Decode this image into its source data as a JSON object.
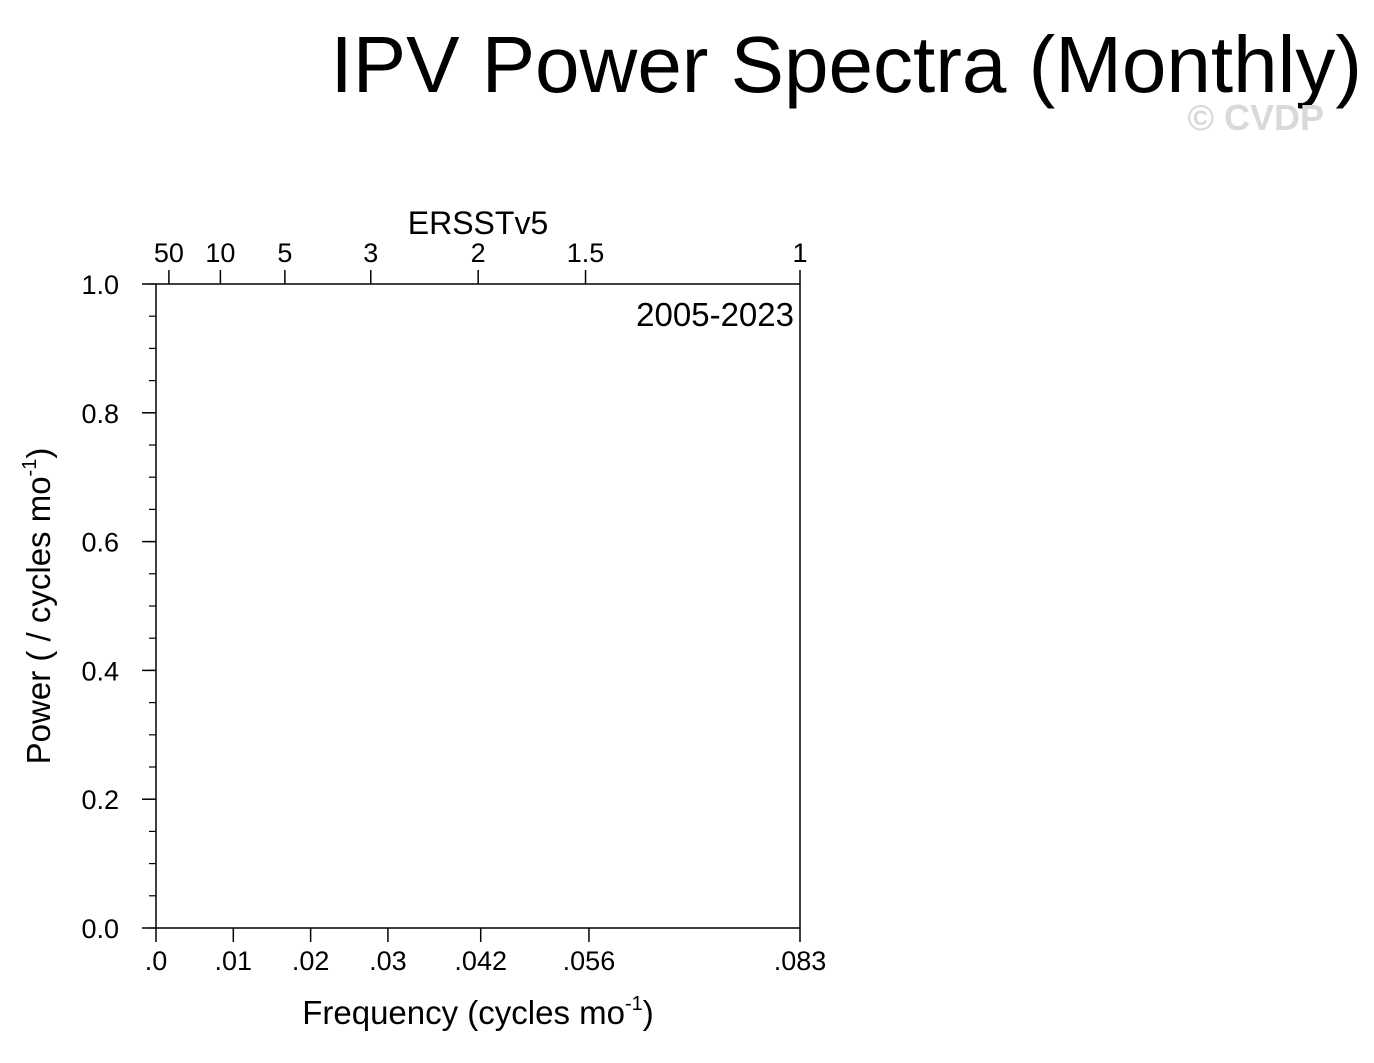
{
  "chart_data": {
    "type": "line",
    "title": "IPV Power Spectra (Monthly)",
    "watermark": "© CVDP",
    "subtitle": "ERSSTv5",
    "period": "2005-2023",
    "xlabel": {
      "text": "Frequency (cycles mo",
      "sup": "-1",
      "close": ")"
    },
    "ylabel": {
      "text": "Power ( / cycles mo",
      "sup": "-1",
      "close": ")"
    },
    "xlim": [
      0,
      0.0833
    ],
    "ylim": [
      0,
      1.0
    ],
    "x_ticks": [
      {
        "value": 0.0,
        "label": ".0"
      },
      {
        "value": 0.01,
        "label": ".01"
      },
      {
        "value": 0.02,
        "label": ".02"
      },
      {
        "value": 0.03,
        "label": ".03"
      },
      {
        "value": 0.042,
        "label": ".042"
      },
      {
        "value": 0.056,
        "label": ".056"
      },
      {
        "value": 0.0833,
        "label": ".083"
      }
    ],
    "top_ticks": [
      {
        "value": 0.00167,
        "label": "50"
      },
      {
        "value": 0.00833,
        "label": "10"
      },
      {
        "value": 0.01667,
        "label": "5"
      },
      {
        "value": 0.02778,
        "label": "3"
      },
      {
        "value": 0.04167,
        "label": "2"
      },
      {
        "value": 0.05556,
        "label": "1.5"
      },
      {
        "value": 0.0833,
        "label": "1"
      }
    ],
    "y_ticks": [
      {
        "value": 0.0,
        "label": "0.0"
      },
      {
        "value": 0.2,
        "label": "0.2"
      },
      {
        "value": 0.4,
        "label": "0.4"
      },
      {
        "value": 0.6,
        "label": "0.6"
      },
      {
        "value": 0.8,
        "label": "0.8"
      },
      {
        "value": 1.0,
        "label": "1.0"
      }
    ],
    "y_minor_step": 0.05,
    "series": []
  }
}
